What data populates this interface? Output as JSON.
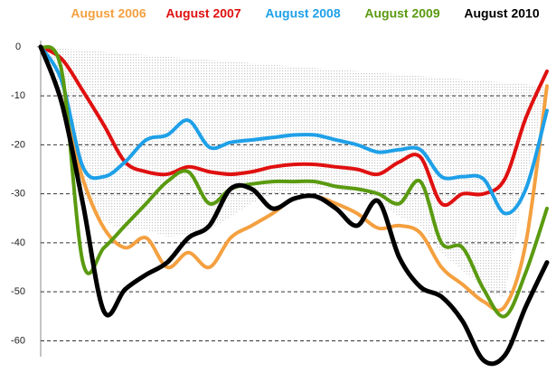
{
  "chart_data": {
    "type": "line",
    "categories": [
      null,
      null,
      null,
      null,
      null,
      null,
      null,
      null,
      null,
      null,
      null,
      null,
      null,
      null,
      null,
      null,
      null,
      null,
      null,
      null,
      null,
      null,
      null,
      null,
      null
    ],
    "series": [
      {
        "name": "August 2006",
        "color": "#f4a040",
        "values": [
          0,
          -11,
          -27,
          -37,
          -41,
          -39,
          -45,
          -42,
          -45,
          -39,
          -36.5,
          -34,
          -31,
          -30.5,
          -32,
          -34,
          -37,
          -36.5,
          -38,
          -45,
          -48.5,
          -52,
          -53,
          -40,
          -8
        ]
      },
      {
        "name": "August 2007",
        "color": "#e01010",
        "values": [
          0,
          -2.5,
          -9,
          -16,
          -23.5,
          -25.5,
          -26,
          -24.5,
          -25.5,
          -26,
          -25.5,
          -24.5,
          -24,
          -24,
          -24.5,
          -25,
          -26,
          -23.5,
          -22.5,
          -32,
          -30,
          -30,
          -27,
          -14.5,
          -5
        ]
      },
      {
        "name": "August 2008",
        "color": "#1ea0e8",
        "values": [
          0,
          -7,
          -24.5,
          -26.5,
          -23.5,
          -19,
          -18,
          -15,
          -20.5,
          -19.5,
          -19,
          -18.5,
          -18,
          -18,
          -19,
          -20,
          -21.5,
          -21,
          -21,
          -26.5,
          -26.5,
          -27,
          -34,
          -29,
          -13
        ]
      },
      {
        "name": "August 2009",
        "color": "#5a9a10",
        "values": [
          0,
          -5,
          -44,
          -41,
          -36.5,
          -32,
          -27.5,
          -25.5,
          -32,
          -29,
          -28,
          -27.5,
          -27.5,
          -27.5,
          -28.5,
          -29,
          -30,
          -32,
          -27.5,
          -40,
          -41,
          -49.5,
          -55,
          -46,
          -33
        ]
      },
      {
        "name": "August 2010",
        "color": "#000000",
        "values": [
          0,
          -11.5,
          -32,
          -54,
          -49.5,
          -46.5,
          -44,
          -39,
          -36.5,
          -29,
          -29,
          -33,
          -31,
          -30.5,
          -33,
          -36.5,
          -31.5,
          -43,
          -49,
          -51,
          -56,
          -64,
          -63,
          -53,
          -44
        ]
      }
    ],
    "ylim": [
      -66,
      2
    ],
    "yticks": [
      0,
      -10,
      -20,
      -30,
      -40,
      -50,
      -60
    ],
    "grid": true
  }
}
